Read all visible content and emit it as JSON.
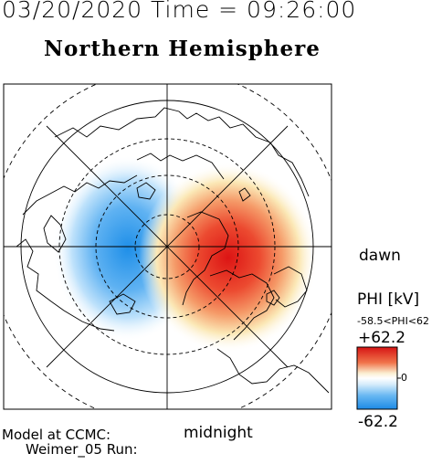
{
  "header": {
    "timestamp": "03/20/2020 Time = 09:26:00",
    "hemisphere": "Northern Hemisphere"
  },
  "map": {
    "direction_right": "dawn",
    "direction_bottom": "midnight",
    "potential_max_kv": 62.2,
    "potential_min_kv": -62.2,
    "positive_cell": "dawn-noon sector (red)",
    "negative_cell": "dusk sector (blue)"
  },
  "colorbar": {
    "title": "PHI [kV]",
    "range_text": "-58.5<PHI<62",
    "max_label": "+62.2",
    "min_label": "-62.2",
    "mid_label": "0",
    "colors": [
      "#1e90ff",
      "#ffffff",
      "#e41a1c"
    ]
  },
  "footer": {
    "model_text": "Model at CCMC:",
    "run_text": "Weimer_05 Run:"
  }
}
